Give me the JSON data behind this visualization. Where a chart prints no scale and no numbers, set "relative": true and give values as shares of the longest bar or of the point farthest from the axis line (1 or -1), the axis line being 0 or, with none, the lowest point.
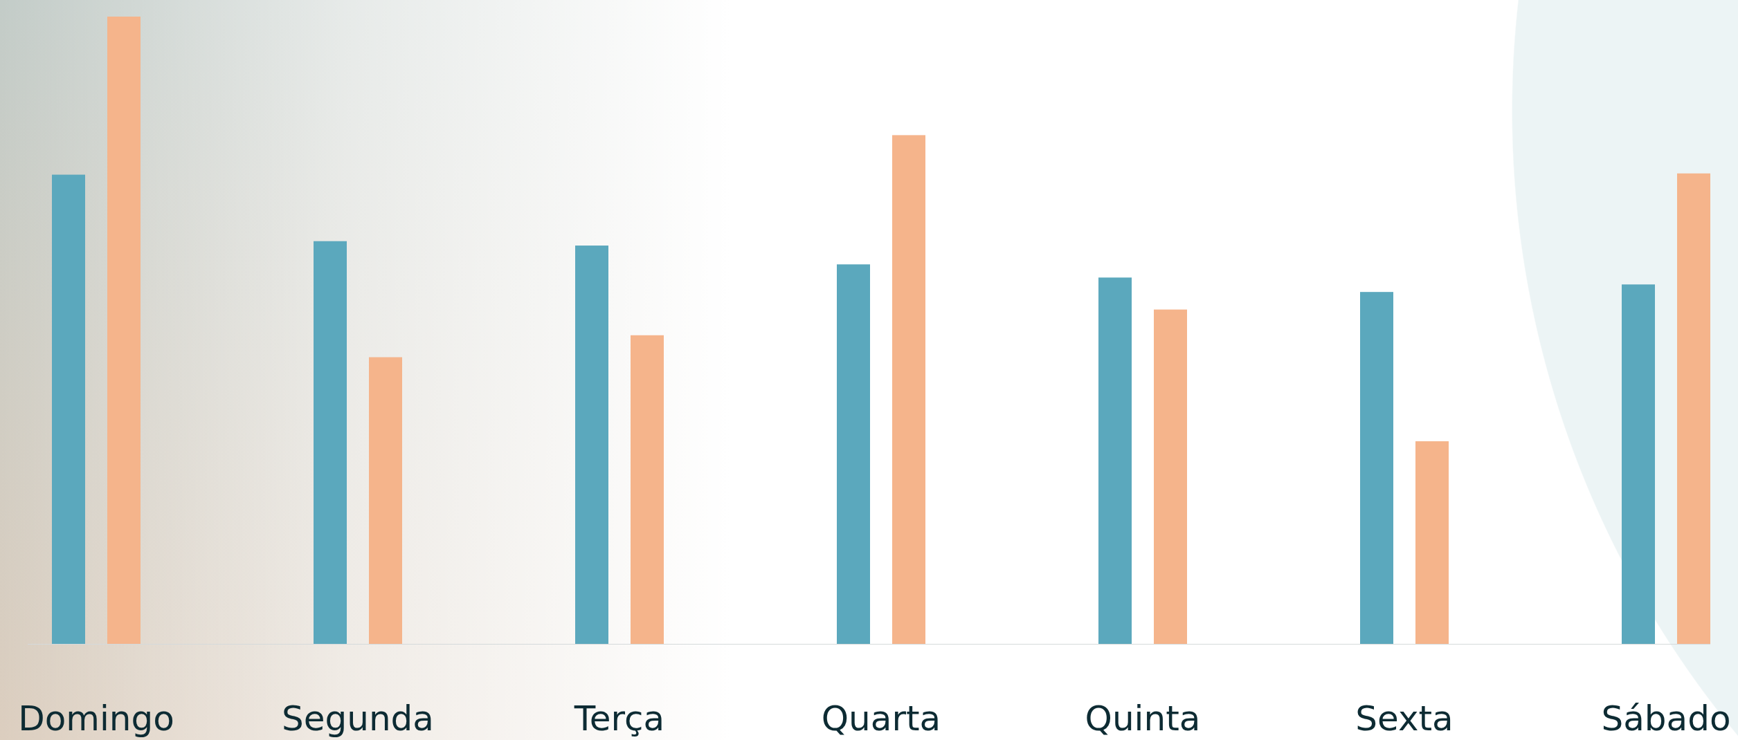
{
  "chart_data": {
    "type": "bar",
    "relative": true,
    "categories": [
      "Domingo",
      "Segunda",
      "Terça",
      "Quarta",
      "Quinta",
      "Sexta",
      "Sábado"
    ],
    "series": [
      {
        "color": "#5ba8bd",
        "values": [
          0.748,
          0.642,
          0.635,
          0.605,
          0.584,
          0.561,
          0.573
        ]
      },
      {
        "color": "#f5b48b",
        "values": [
          1,
          0.457,
          0.492,
          0.811,
          0.533,
          0.323,
          0.75
        ]
      }
    ]
  }
}
